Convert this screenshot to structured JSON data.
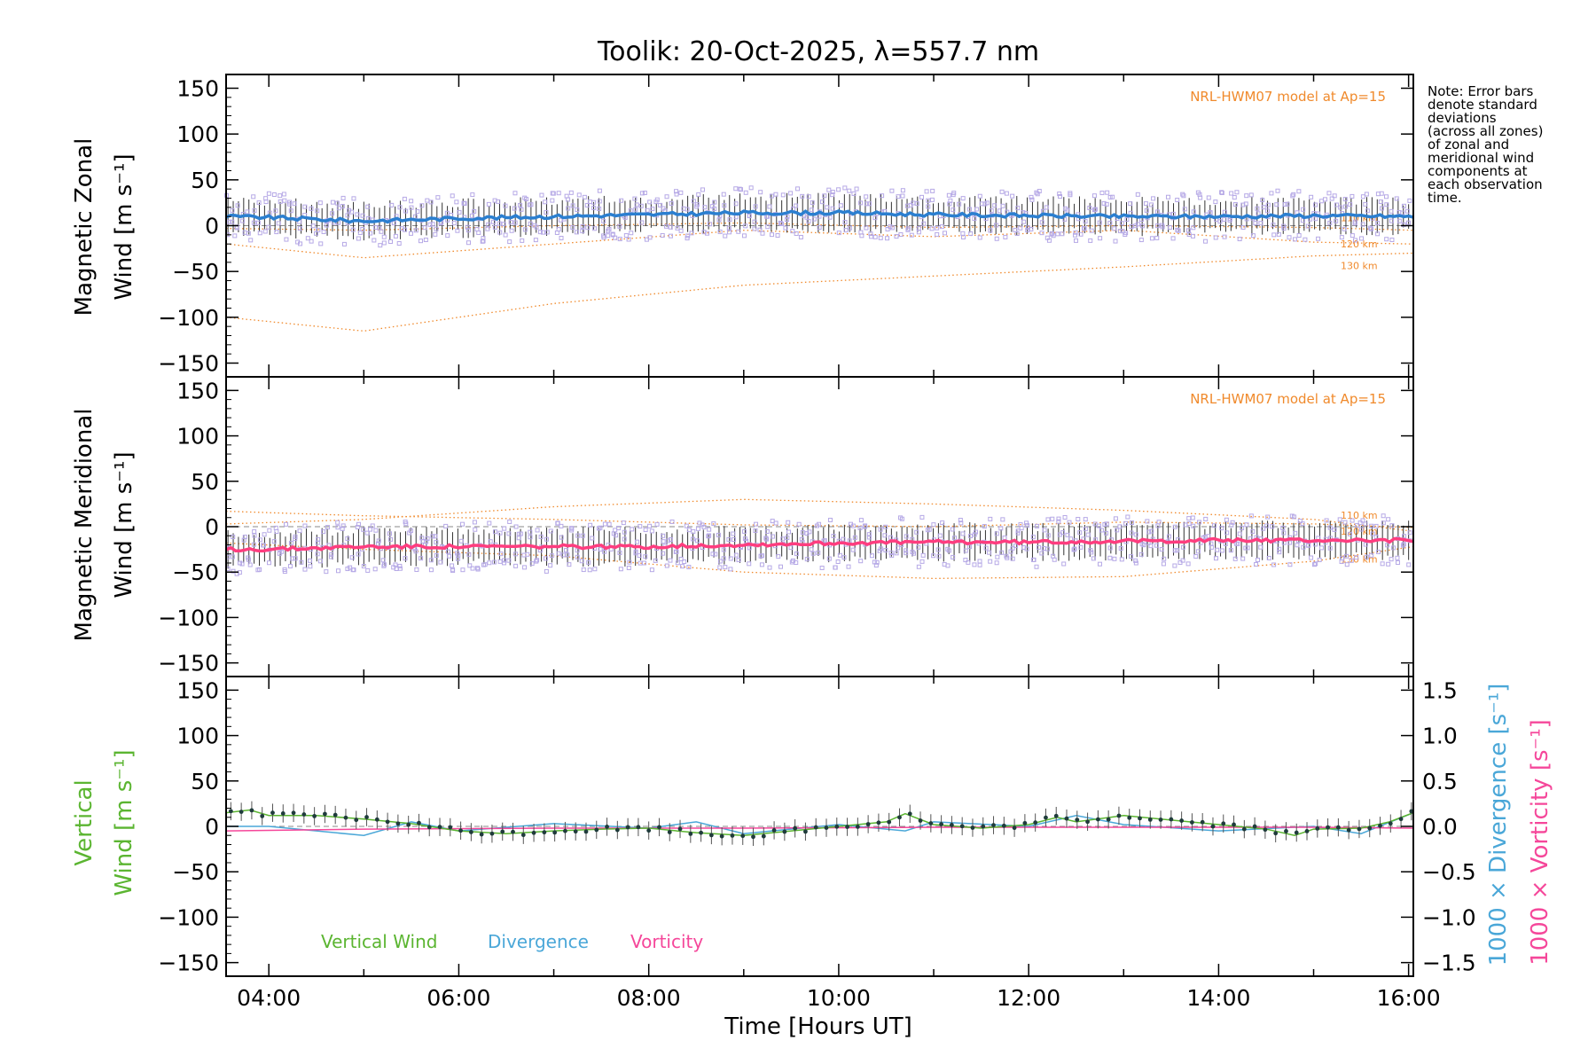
{
  "title": "Toolik: 20-Oct-2025, λ=557.7 nm",
  "note": [
    "Note: Error bars",
    "denote standard",
    "deviations",
    "(across all zones)",
    "of zonal and",
    "meridional wind",
    "components at",
    "each observation",
    "time."
  ],
  "colors": {
    "axis": "#000000",
    "model": "#f08a2c",
    "zonal_mean": "#2b7fd0",
    "meridional_mean": "#ff3d7f",
    "vertical": "#5bb531",
    "divergence": "#4aa7d8",
    "vorticity": "#f5479a",
    "samples": "#b6a9e6",
    "errorbar": "#333333"
  },
  "chart_data": [
    {
      "type": "line",
      "panel": "zonal",
      "ylabel": [
        "Magnetic Zonal",
        "Wind [m s⁻¹]"
      ],
      "ylim": [
        -165,
        165
      ],
      "yticks": [
        150,
        100,
        50,
        0,
        -50,
        -100,
        -150
      ],
      "xlim": [
        3.55,
        16.05
      ],
      "model_label": "NRL-HWM07 model at Ap=15",
      "model_series": [
        {
          "name": "110 km",
          "x": [
            3.55,
            5,
            7,
            9,
            11,
            13,
            15,
            16.05
          ],
          "y": [
            -3,
            -5,
            0,
            3,
            -2,
            0,
            -2,
            -5
          ]
        },
        {
          "name": "120 km",
          "x": [
            3.55,
            5,
            7,
            9,
            11,
            13,
            15,
            16.05
          ],
          "y": [
            -20,
            -35,
            -20,
            -5,
            -12,
            -5,
            -18,
            -20
          ]
        },
        {
          "name": "130 km",
          "x": [
            3.55,
            5,
            7,
            9,
            11,
            13,
            15,
            16.05
          ],
          "y": [
            -100,
            -115,
            -85,
            -65,
            -55,
            -45,
            -33,
            -30
          ]
        }
      ],
      "series": [
        {
          "name": "Zonal mean",
          "x": [
            3.55,
            4,
            5,
            6,
            7,
            8,
            9,
            10,
            11,
            12,
            13,
            14,
            15,
            16.05
          ],
          "y": [
            10,
            9,
            5,
            8,
            10,
            12,
            14,
            14,
            12,
            11,
            10,
            10,
            11,
            10
          ]
        }
      ]
    },
    {
      "type": "line",
      "panel": "meridional",
      "ylabel": [
        "Magnetic Meridional",
        "Wind [m s⁻¹]"
      ],
      "ylim": [
        -165,
        165
      ],
      "yticks": [
        150,
        100,
        50,
        0,
        -50,
        -100,
        -150
      ],
      "xlim": [
        3.55,
        16.05
      ],
      "model_label": "NRL-HWM07 model at Ap=15",
      "model_series": [
        {
          "name": "110 km",
          "x": [
            3.55,
            5,
            7,
            9,
            11,
            13,
            15,
            16.05
          ],
          "y": [
            17,
            12,
            8,
            2,
            0,
            5,
            3,
            -1
          ]
        },
        {
          "name": "120 km",
          "x": [
            3.55,
            5,
            7,
            9,
            11,
            13,
            15,
            16.05
          ],
          "y": [
            3,
            8,
            22,
            30,
            25,
            18,
            8,
            -5
          ]
        },
        {
          "name": "130 km",
          "x": [
            3.55,
            5,
            7,
            9,
            11,
            13,
            15,
            16.05
          ],
          "y": [
            -18,
            -25,
            -32,
            -50,
            -57,
            -55,
            -38,
            -22
          ]
        }
      ],
      "series": [
        {
          "name": "Meridional mean",
          "x": [
            3.55,
            4,
            5,
            6,
            7,
            8,
            9,
            10,
            11,
            12,
            13,
            14,
            15,
            16.05
          ],
          "y": [
            -25,
            -25,
            -22,
            -22,
            -22,
            -22,
            -20,
            -18,
            -17,
            -17,
            -16,
            -15,
            -15,
            -15
          ]
        }
      ]
    },
    {
      "type": "line",
      "panel": "vertical",
      "ylabel": [
        "Vertical",
        "Wind [m s⁻¹]"
      ],
      "ylim": [
        -165,
        165
      ],
      "yticks": [
        150,
        100,
        50,
        0,
        -50,
        -100,
        -150
      ],
      "xlim": [
        3.55,
        16.05
      ],
      "xticks": [
        "04:00",
        "06:00",
        "08:00",
        "10:00",
        "12:00",
        "14:00",
        "16:00"
      ],
      "xlabel": "Time [Hours UT]",
      "y2label_divergence": "1000 × Divergence [s⁻¹]",
      "y2label_vorticity": "1000 × Vorticity [s⁻¹]",
      "y2lim": [
        -1.65,
        1.65
      ],
      "y2ticks": [
        "1.5",
        "1.0",
        "0.5",
        "0.0",
        "−0.5",
        "−1.0",
        "−1.5"
      ],
      "legend": [
        {
          "label": "Vertical Wind"
        },
        {
          "label": "Divergence"
        },
        {
          "label": "Vorticity"
        }
      ],
      "series": [
        {
          "name": "Vertical Wind",
          "x": [
            3.55,
            3.8,
            4,
            4.5,
            5,
            5.5,
            6,
            6.5,
            7,
            7.5,
            8,
            8.5,
            9,
            9.5,
            10,
            10.5,
            10.7,
            11,
            11.5,
            12,
            12.3,
            12.5,
            13,
            13.5,
            14,
            14.5,
            14.8,
            15,
            15.5,
            15.8,
            16.05
          ],
          "y": [
            15,
            18,
            12,
            12,
            8,
            3,
            -5,
            -8,
            -5,
            -3,
            -2,
            -7,
            -10,
            -5,
            0,
            5,
            14,
            2,
            -2,
            2,
            10,
            5,
            12,
            7,
            2,
            -3,
            -10,
            -3,
            -2,
            5,
            15
          ]
        },
        {
          "name": "Divergence",
          "x": [
            3.55,
            4,
            5,
            5.5,
            6,
            7,
            8,
            8.5,
            9,
            10,
            10.7,
            11,
            12,
            12.5,
            13,
            14,
            15,
            15.5,
            16.05
          ],
          "y": [
            0,
            0,
            -0.1,
            0.05,
            -0.05,
            0.03,
            -0.02,
            0.05,
            -0.08,
            0.02,
            -0.05,
            0.05,
            0,
            0.12,
            0.02,
            -0.05,
            0,
            -0.08,
            0.15
          ]
        },
        {
          "name": "Vorticity",
          "x": [
            3.55,
            5,
            7,
            9,
            11,
            13,
            15,
            16.05
          ],
          "y": [
            -0.05,
            -0.03,
            -0.02,
            -0.02,
            -0.01,
            -0.01,
            -0.01,
            -0.02
          ]
        }
      ]
    }
  ]
}
